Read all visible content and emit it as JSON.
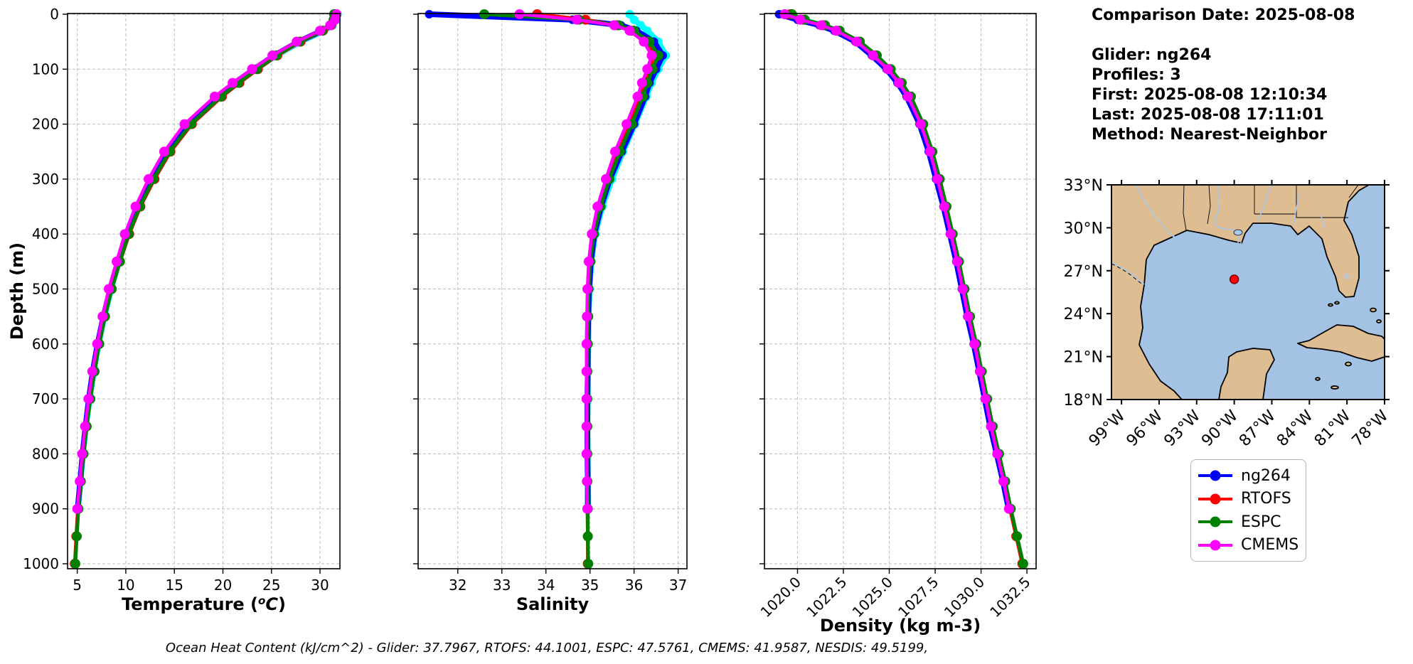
{
  "info_panel": {
    "text": "Comparison Date: 2025-08-08\n\nGlider: ng264\nProfiles: 3\nFirst: 2025-08-08 12:10:34\nLast: 2025-08-08 17:11:01\nMethod: Nearest-Neighbor"
  },
  "footer": {
    "ohc_text": "Ocean Heat Content (kJ/cm^2) - Glider: 37.7967,  RTOFS: 44.1001,  ESPC: 47.5761,  CMEMS: 41.9587,  NESDIS: 49.5199,"
  },
  "legend": {
    "items": [
      {
        "label": "ng264",
        "color": "#0000ff"
      },
      {
        "label": "RTOFS",
        "color": "#ff0000"
      },
      {
        "label": "ESPC",
        "color": "#008000"
      },
      {
        "label": "CMEMS",
        "color": "#ff00ff"
      }
    ]
  },
  "map": {
    "lat_labels": [
      "33°N",
      "30°N",
      "27°N",
      "24°N",
      "21°N",
      "18°N"
    ],
    "lat_ticks": [
      33,
      30,
      27,
      24,
      21,
      18
    ],
    "lon_labels": [
      "99°W",
      "96°W",
      "93°W",
      "90°W",
      "87°W",
      "84°W",
      "81°W",
      "78°W"
    ],
    "lon_ticks": [
      99,
      96,
      93,
      90,
      87,
      84,
      81,
      78
    ],
    "land_color": "#debd92",
    "ocean_color": "#a4c2e4",
    "river_color": "#a9c9ec",
    "lake_color": "#c4c4c4",
    "marker_color": "#ff0000",
    "marker_lon": 90.0,
    "marker_lat": 26.4
  },
  "chart_data": [
    {
      "type": "line",
      "xlabel": "Temperature (°C)",
      "ylabel": "Depth (m)",
      "xlim": [
        4.0,
        32.05
      ],
      "ylim": [
        0,
        1000
      ],
      "y_inverted": true,
      "grid": true,
      "xticks": [
        5,
        10,
        15,
        20,
        25,
        30
      ],
      "xtick_labels": [
        "5",
        "10",
        "15",
        "20",
        "25",
        "30"
      ],
      "yticks": [
        0,
        100,
        200,
        300,
        400,
        500,
        600,
        700,
        800,
        900,
        1000
      ],
      "depths": {
        "obs": [
          0,
          10,
          20,
          30,
          50,
          75,
          100,
          125,
          150,
          200,
          250,
          300,
          350,
          400,
          450,
          500,
          550,
          600,
          650,
          700,
          750,
          800,
          850,
          900
        ],
        "full": [
          0,
          10,
          20,
          30,
          50,
          75,
          100,
          125,
          150,
          200,
          250,
          300,
          350,
          400,
          450,
          500,
          550,
          600,
          650,
          700,
          750,
          800,
          850,
          900,
          950,
          1000
        ]
      },
      "series": [
        {
          "name": "NESDIS",
          "color": "#00ffff",
          "in_legend": false,
          "levels": "obs",
          "values": [
            31.8,
            31.7,
            31.3,
            30.4,
            28.0,
            25.5,
            23.4,
            21.4,
            19.6,
            16.5,
            14.35,
            12.75,
            11.35,
            10.2,
            9.3,
            8.5,
            7.8,
            7.2,
            6.7,
            6.28,
            5.9,
            5.6,
            5.33,
            5.08
          ]
        },
        {
          "name": "ng264",
          "color": "#0000ff",
          "in_legend": true,
          "levels": "obs",
          "values": [
            31.7,
            31.6,
            31.2,
            30.2,
            27.8,
            25.3,
            23.2,
            21.2,
            19.4,
            16.3,
            14.2,
            12.6,
            11.2,
            10.1,
            9.2,
            8.4,
            7.7,
            7.1,
            6.6,
            6.2,
            5.85,
            5.55,
            5.3,
            5.05
          ]
        },
        {
          "name": "RTOFS",
          "color": "#ff0000",
          "in_legend": true,
          "levels": "full",
          "values": [
            31.55,
            31.5,
            31.15,
            30.3,
            28.0,
            25.6,
            23.6,
            21.7,
            19.9,
            16.8,
            14.6,
            12.95,
            11.5,
            10.35,
            9.4,
            8.55,
            7.85,
            7.25,
            6.75,
            6.3,
            5.92,
            5.6,
            5.32,
            5.06,
            4.9,
            4.75
          ]
        },
        {
          "name": "ESPC",
          "color": "#008000",
          "in_legend": true,
          "levels": "full",
          "values": [
            31.45,
            31.4,
            31.1,
            30.25,
            27.9,
            25.5,
            23.5,
            21.6,
            19.8,
            16.7,
            14.5,
            12.85,
            11.45,
            10.3,
            9.38,
            8.55,
            7.86,
            7.27,
            6.78,
            6.35,
            5.97,
            5.65,
            5.37,
            5.12,
            4.95,
            4.8
          ]
        },
        {
          "name": "CMEMS",
          "color": "#ff00ff",
          "in_legend": true,
          "levels": "obs",
          "values": [
            31.7,
            31.55,
            31.05,
            30.0,
            27.6,
            25.1,
            23.0,
            21.0,
            19.15,
            16.05,
            13.95,
            12.35,
            11.0,
            9.9,
            9.05,
            8.25,
            7.6,
            7.05,
            6.55,
            6.15,
            5.8,
            5.5,
            5.25,
            5.0
          ]
        }
      ]
    },
    {
      "type": "line",
      "xlabel": "Salinity",
      "ylabel": "Depth (m)",
      "xlim": [
        31.1,
        37.2
      ],
      "ylim": [
        0,
        1000
      ],
      "y_inverted": true,
      "grid": true,
      "xticks": [
        32,
        33,
        34,
        35,
        36,
        37
      ],
      "xtick_labels": [
        "32",
        "33",
        "34",
        "35",
        "36",
        "37"
      ],
      "yticks": [
        0,
        100,
        200,
        300,
        400,
        500,
        600,
        700,
        800,
        900,
        1000
      ],
      "depths": {
        "obs": [
          0,
          10,
          20,
          30,
          50,
          75,
          100,
          125,
          150,
          200,
          250,
          300,
          350,
          400,
          450,
          500,
          550,
          600,
          650,
          700,
          750,
          800,
          850,
          900
        ],
        "full": [
          0,
          10,
          20,
          30,
          50,
          75,
          100,
          125,
          150,
          200,
          250,
          300,
          350,
          400,
          450,
          500,
          550,
          600,
          650,
          700,
          750,
          800,
          850,
          900,
          950,
          1000
        ]
      },
      "series": [
        {
          "name": "NESDIS",
          "color": "#00ffff",
          "in_legend": false,
          "levels": "obs",
          "values": [
            35.9,
            36.0,
            36.15,
            36.3,
            36.55,
            36.72,
            36.55,
            36.4,
            36.28,
            36.02,
            35.75,
            35.5,
            35.28,
            35.12,
            35.03,
            34.99,
            34.97,
            34.96,
            34.95,
            34.95,
            34.94,
            34.95,
            34.95,
            34.96
          ]
        },
        {
          "name": "ng264",
          "color": "#0000ff",
          "in_legend": true,
          "levels": "obs",
          "values": [
            31.35,
            34.6,
            35.7,
            36.05,
            36.45,
            36.65,
            36.5,
            36.35,
            36.25,
            36.0,
            35.72,
            35.45,
            35.25,
            35.1,
            35.02,
            34.98,
            34.96,
            34.95,
            34.95,
            34.94,
            34.94,
            34.94,
            34.95,
            34.95
          ]
        },
        {
          "name": "RTOFS",
          "color": "#ff0000",
          "in_legend": true,
          "levels": "full",
          "values": [
            33.8,
            34.9,
            35.6,
            35.95,
            36.3,
            36.45,
            36.35,
            36.25,
            36.12,
            35.88,
            35.62,
            35.4,
            35.2,
            35.07,
            35.0,
            34.96,
            34.95,
            34.94,
            34.93,
            34.93,
            34.93,
            34.93,
            34.94,
            34.94,
            34.95,
            34.95
          ]
        },
        {
          "name": "ESPC",
          "color": "#008000",
          "in_legend": true,
          "levels": "full",
          "values": [
            32.6,
            34.75,
            35.65,
            36.0,
            36.35,
            36.55,
            36.42,
            36.3,
            36.2,
            35.95,
            35.68,
            35.44,
            35.24,
            35.09,
            35.01,
            34.97,
            34.96,
            34.95,
            34.94,
            34.94,
            34.94,
            34.94,
            34.94,
            34.95,
            34.95,
            34.96
          ]
        },
        {
          "name": "CMEMS",
          "color": "#ff00ff",
          "in_legend": true,
          "levels": "obs",
          "values": [
            33.4,
            34.7,
            35.55,
            35.9,
            36.22,
            36.4,
            36.3,
            36.18,
            36.08,
            35.83,
            35.57,
            35.36,
            35.17,
            35.04,
            34.97,
            34.94,
            34.93,
            34.92,
            34.92,
            34.92,
            34.92,
            34.92,
            34.93,
            34.94
          ]
        }
      ]
    },
    {
      "type": "line",
      "xlabel": "Density (kg m-3)",
      "ylabel": "Depth (m)",
      "xlim": [
        1018.2,
        1033.0
      ],
      "ylim": [
        0,
        1000
      ],
      "y_inverted": true,
      "grid": true,
      "xticks": [
        1020.0,
        1022.5,
        1025.0,
        1027.5,
        1030.0,
        1032.5
      ],
      "xtick_labels": [
        "1020.0",
        "1022.5",
        "1025.0",
        "1027.5",
        "1030.0",
        "1032.5"
      ],
      "yticks": [
        0,
        100,
        200,
        300,
        400,
        500,
        600,
        700,
        800,
        900,
        1000
      ],
      "depths": {
        "obs": [
          0,
          10,
          20,
          30,
          50,
          75,
          100,
          125,
          150,
          200,
          250,
          300,
          350,
          400,
          450,
          500,
          550,
          600,
          650,
          700,
          750,
          800,
          850,
          900
        ],
        "full": [
          0,
          10,
          20,
          30,
          50,
          75,
          100,
          125,
          150,
          200,
          250,
          300,
          350,
          400,
          450,
          500,
          550,
          600,
          650,
          700,
          750,
          800,
          850,
          900,
          950,
          1000
        ]
      },
      "series": [
        {
          "name": "NESDIS",
          "color": "#00ffff",
          "in_legend": false,
          "levels": "obs",
          "values": [
            1019.4,
            1020.2,
            1021.35,
            1022.15,
            1023.28,
            1024.18,
            1024.98,
            1025.58,
            1026.08,
            1026.76,
            1027.26,
            1027.66,
            1028.04,
            1028.38,
            1028.72,
            1029.02,
            1029.32,
            1029.66,
            1029.96,
            1030.26,
            1030.56,
            1030.9,
            1031.25,
            1031.55
          ]
        },
        {
          "name": "ng264",
          "color": "#0000ff",
          "in_legend": true,
          "levels": "obs",
          "values": [
            1019.0,
            1020.0,
            1021.2,
            1022.0,
            1023.15,
            1024.05,
            1024.85,
            1025.45,
            1025.95,
            1026.65,
            1027.15,
            1027.55,
            1027.95,
            1028.3,
            1028.65,
            1028.95,
            1029.25,
            1029.6,
            1029.9,
            1030.2,
            1030.5,
            1030.85,
            1031.2,
            1031.5
          ]
        },
        {
          "name": "RTOFS",
          "color": "#ff0000",
          "in_legend": true,
          "levels": "full",
          "values": [
            1019.6,
            1020.3,
            1021.4,
            1022.2,
            1023.32,
            1024.25,
            1025.02,
            1025.62,
            1026.12,
            1026.8,
            1027.3,
            1027.7,
            1028.07,
            1028.42,
            1028.76,
            1029.06,
            1029.36,
            1029.7,
            1030.0,
            1030.3,
            1030.6,
            1030.94,
            1031.28,
            1031.58,
            1031.92,
            1032.25
          ]
        },
        {
          "name": "ESPC",
          "color": "#008000",
          "in_legend": true,
          "levels": "full",
          "values": [
            1019.7,
            1020.4,
            1021.5,
            1022.3,
            1023.4,
            1024.32,
            1025.08,
            1025.68,
            1026.18,
            1026.85,
            1027.35,
            1027.75,
            1028.12,
            1028.46,
            1028.8,
            1029.1,
            1029.4,
            1029.74,
            1030.04,
            1030.34,
            1030.64,
            1030.98,
            1031.32,
            1031.62,
            1031.96,
            1032.3
          ]
        },
        {
          "name": "CMEMS",
          "color": "#ff00ff",
          "in_legend": true,
          "levels": "obs",
          "values": [
            1019.3,
            1020.15,
            1021.3,
            1022.1,
            1023.22,
            1024.12,
            1024.92,
            1025.52,
            1026.02,
            1026.72,
            1027.22,
            1027.62,
            1028.0,
            1028.35,
            1028.7,
            1029.0,
            1029.3,
            1029.64,
            1029.94,
            1030.24,
            1030.54,
            1030.88,
            1031.22,
            1031.52
          ]
        }
      ]
    }
  ]
}
